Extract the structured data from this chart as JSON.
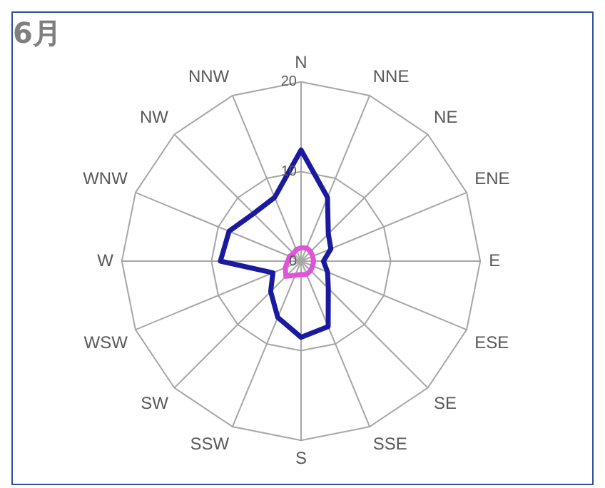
{
  "chart_data": {
    "type": "radar",
    "title": "6月",
    "categories": [
      "N",
      "NNE",
      "NE",
      "ENE",
      "E",
      "ESE",
      "SE",
      "SSE",
      "S",
      "SSW",
      "SW",
      "WSW",
      "W",
      "WNW",
      "NW",
      "NNW"
    ],
    "series": [
      {
        "color": "#1a1aa0",
        "values": [
          12.4,
          7.7,
          4.3,
          3.6,
          2.5,
          3.2,
          4.3,
          7.9,
          8.5,
          6.8,
          4.8,
          3.4,
          9.0,
          8.7,
          7.5,
          7.7
        ]
      },
      {
        "color": "#e055d8",
        "values": [
          1.5,
          1.6,
          1.5,
          1.4,
          1.4,
          1.4,
          1.5,
          1.6,
          1.5,
          1.7,
          2.4,
          1.9,
          1.5,
          1.4,
          1.2,
          1.4
        ]
      }
    ],
    "ylim": [
      0,
      20
    ],
    "yticks": [
      0,
      10,
      20
    ],
    "grid": true,
    "legend": false,
    "marker": "none",
    "line_style": "solid"
  }
}
